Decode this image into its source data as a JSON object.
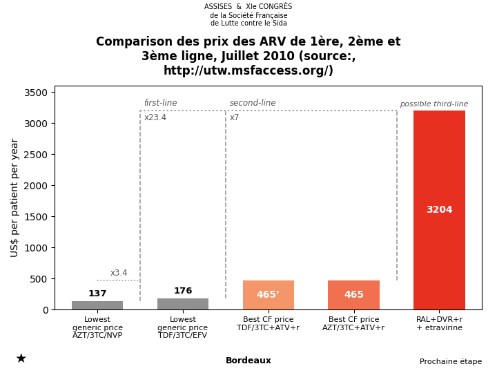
{
  "chart_data": {
    "type": "bar",
    "title": "Comparison des prix des ARV de 1ère, 2ème et\n3ème ligne, Juillet 2010 (source:,\nhttp://utw.msfaccess.org/)",
    "categories": [
      "Lowest\ngeneric price\nAZT/3TC/NVP",
      "Lowest\ngeneric price\nTDF/3TC/EFV",
      "Best CF price\nTDF/3TC+ATV+r",
      "Best CF price\nAZT/3TC+ATV+r",
      "RAL+DVR+r\n+ etravirine"
    ],
    "values": [
      137,
      176,
      465,
      465,
      3204
    ],
    "value_labels": [
      "137",
      "176",
      "465’",
      "465",
      "3204"
    ],
    "data_labels": true,
    "colors": [
      "#909090",
      "#909090",
      "#f4956a",
      "#f07050",
      "#e83020"
    ],
    "ylabel": "US$ per patient per year",
    "ylim": [
      0,
      3600
    ],
    "yticks": [
      0,
      500,
      1000,
      1500,
      2000,
      2500,
      3000,
      3500
    ],
    "grid": false,
    "annotations": [
      "first-line",
      "x23.4",
      "second-line",
      "x7",
      "possible third-line",
      "x3.4",
      "ASSISES  &  XIe CONGRÈS\nde la Société Française\nde Lutte contre le Sida",
      "Bordeaux",
      "Prochaine étape",
      "★"
    ]
  }
}
